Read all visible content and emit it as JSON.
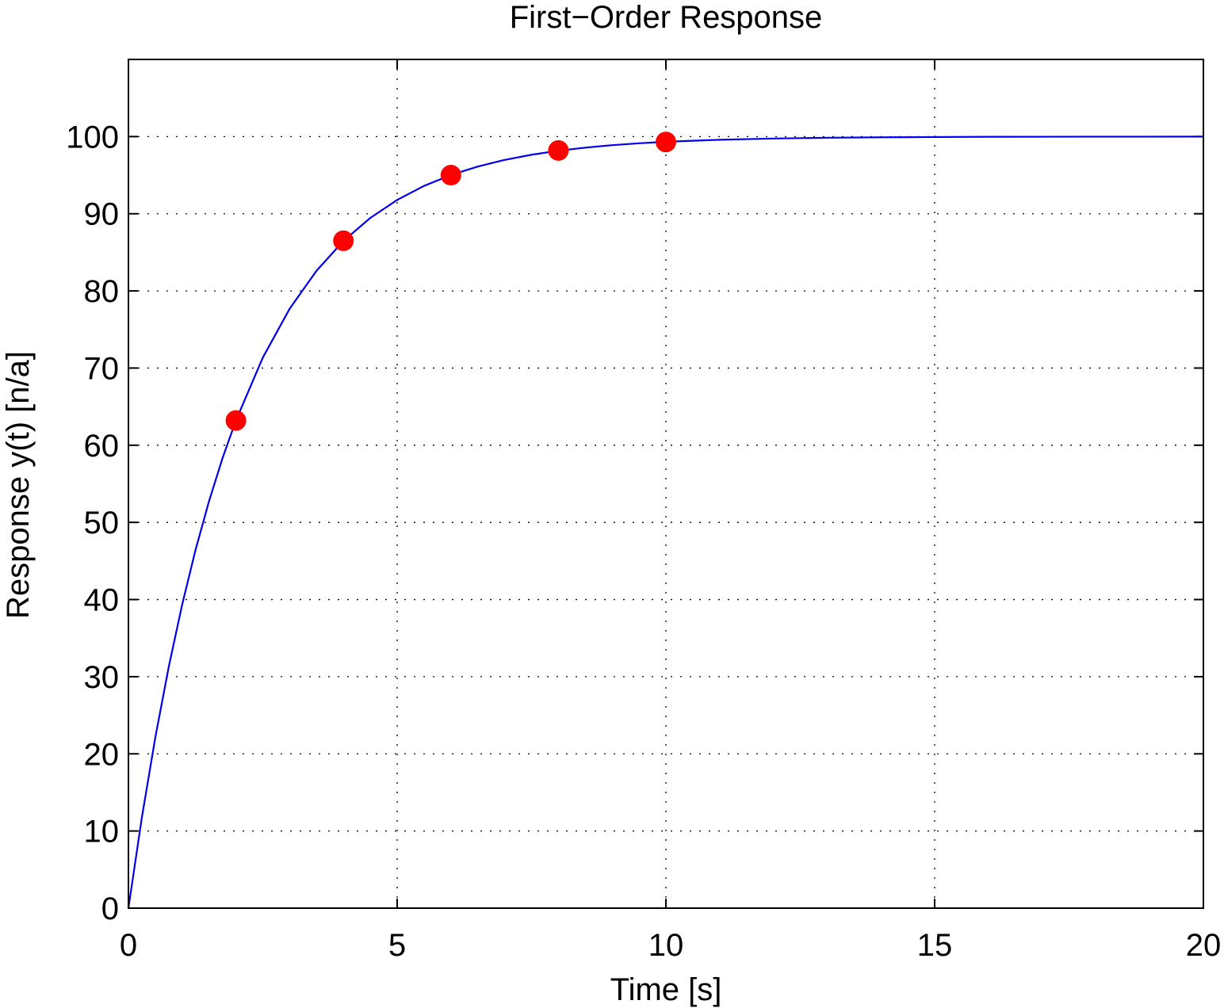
{
  "chart_data": {
    "type": "line",
    "title": "First−Order Response",
    "xlabel": "Time [s]",
    "ylabel": "Response y(t) [n/a]",
    "xlim": [
      0,
      20
    ],
    "ylim": [
      0,
      100
    ],
    "y_axis_top": 110,
    "xticks": [
      0,
      5,
      10,
      15,
      20
    ],
    "xtick_labels": [
      "0",
      "5",
      "10",
      "15",
      "20"
    ],
    "yticks": [
      0,
      10,
      20,
      30,
      40,
      50,
      60,
      70,
      80,
      90,
      100
    ],
    "ytick_labels": [
      "0",
      "10",
      "20",
      "30",
      "40",
      "50",
      "60",
      "70",
      "80",
      "90",
      "100"
    ],
    "grid": true,
    "legend": "none",
    "series": [
      {
        "style": "line",
        "color": "#0000ee",
        "model": "100*(1-exp(-t/2))",
        "x": [
          0,
          0.25,
          0.5,
          0.75,
          1,
          1.25,
          1.5,
          1.75,
          2,
          2.5,
          3,
          3.5,
          4,
          4.5,
          5,
          5.5,
          6,
          6.5,
          7,
          7.5,
          8,
          8.5,
          9,
          9.5,
          10,
          11,
          12,
          13,
          14,
          15,
          16,
          17,
          18,
          19,
          20
        ],
        "y": [
          0,
          11.75,
          22.12,
          31.27,
          39.35,
          46.47,
          52.76,
          58.31,
          63.21,
          71.35,
          77.69,
          82.62,
          86.47,
          89.46,
          91.79,
          93.61,
          95.02,
          96.12,
          96.98,
          97.65,
          98.17,
          98.57,
          98.89,
          99.13,
          99.33,
          99.59,
          99.75,
          99.85,
          99.91,
          99.94,
          99.97,
          99.98,
          99.99,
          99.99,
          100
        ]
      },
      {
        "style": "markers",
        "color": "#ff0000",
        "x": [
          2,
          4,
          6,
          8,
          10
        ],
        "y": [
          63.2,
          86.5,
          95.0,
          98.2,
          99.3
        ]
      }
    ]
  }
}
